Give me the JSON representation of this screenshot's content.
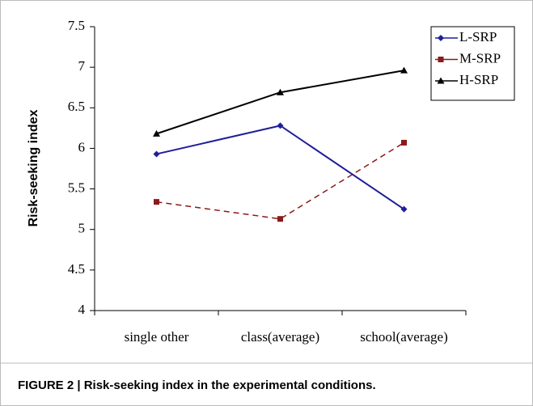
{
  "chart_data": {
    "type": "line",
    "ylabel": "Risk-seeking index",
    "categories": [
      "single other",
      "class(average)",
      "school(average)"
    ],
    "series": [
      {
        "name": "L-SRP",
        "color": "#1f1f9a",
        "marker": "diamond",
        "dash": false,
        "values": [
          5.93,
          6.28,
          5.25
        ]
      },
      {
        "name": "M-SRP",
        "color": "#8b1a1a",
        "marker": "square",
        "dash": true,
        "values": [
          5.34,
          5.13,
          6.07
        ]
      },
      {
        "name": "H-SRP",
        "color": "#000000",
        "marker": "triangle",
        "dash": false,
        "values": [
          6.18,
          6.69,
          6.96
        ]
      }
    ],
    "ylim": [
      4,
      7.5
    ],
    "yticks": [
      4,
      4.5,
      5,
      5.5,
      6,
      6.5,
      7,
      7.5
    ],
    "grid": false,
    "legend": "top-right"
  },
  "caption": "FIGURE 2 | Risk-seeking index in the experimental conditions."
}
